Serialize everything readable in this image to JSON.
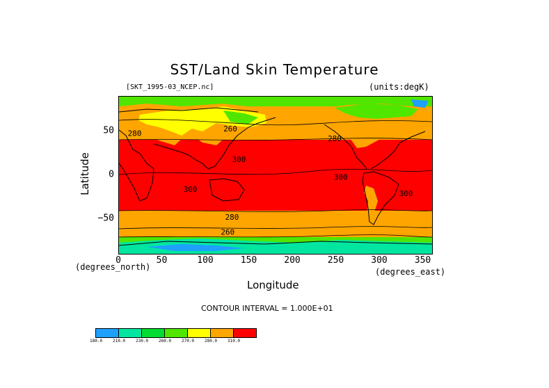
{
  "title": "SST/Land Skin Temperature",
  "file_label": "[SKT_1995-03_NCEP.nc]",
  "units_label": "(units:degK)",
  "x_axis": {
    "label": "Longitude",
    "unit_left": "(degrees_north)",
    "unit_right": "(degrees_east)",
    "ticks": [
      "0",
      "50",
      "100",
      "150",
      "200",
      "250",
      "300",
      "350"
    ],
    "tick_values": [
      0,
      50,
      100,
      150,
      200,
      250,
      300,
      350
    ],
    "range": [
      0,
      360
    ]
  },
  "y_axis": {
    "label": "Latitude",
    "ticks": [
      "50",
      "0",
      "−50"
    ],
    "tick_values": [
      50,
      0,
      -50
    ],
    "range": [
      -90,
      90
    ]
  },
  "contour_interval": "CONTOUR INTERVAL = 1.000E+01",
  "contour_labels": [
    {
      "text": "280",
      "lon": 18,
      "lat": 45
    },
    {
      "text": "260",
      "lon": 128,
      "lat": 50
    },
    {
      "text": "280",
      "lon": 248,
      "lat": 39
    },
    {
      "text": "300",
      "lon": 138,
      "lat": 15
    },
    {
      "text": "300",
      "lon": 255,
      "lat": -5
    },
    {
      "text": "300",
      "lon": 82,
      "lat": -19
    },
    {
      "text": "300",
      "lon": 330,
      "lat": -24
    },
    {
      "text": "280",
      "lon": 130,
      "lat": -51
    },
    {
      "text": "260",
      "lon": 125,
      "lat": -68
    }
  ],
  "colorbar": {
    "colors": [
      "#1ea0ff",
      "#00e6a0",
      "#00dc32",
      "#50e600",
      "#ffff00",
      "#ffa500",
      "#ff0000"
    ],
    "labels": [
      "180.0",
      "210.0",
      "230.0",
      "260.0",
      "270.0",
      "280.0",
      "310.0"
    ]
  }
}
